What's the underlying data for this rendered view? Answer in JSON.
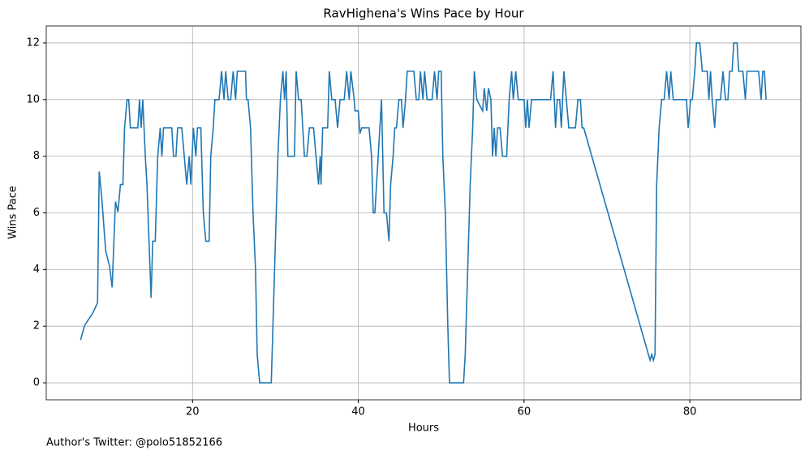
{
  "chart_data": {
    "type": "line",
    "title": "RavHighena's Wins Pace by Hour",
    "xlabel": "Hours",
    "ylabel": "Wins Pace",
    "footnote": "Author's Twitter: @polo51852166",
    "x": [
      6.49,
      6.98,
      7.96,
      8.54,
      8.74,
      9.03,
      9.52,
      10.0,
      10.3,
      10.7,
      11.0,
      11.3,
      11.6,
      11.8,
      12.1,
      12.3,
      12.5,
      13.4,
      13.6,
      13.8,
      14.0,
      14.3,
      14.5,
      15.0,
      15.2,
      15.5,
      15.8,
      16.1,
      16.3,
      16.5,
      17.5,
      17.7,
      18.0,
      18.2,
      18.7,
      19.0,
      19.3,
      19.6,
      19.8,
      20.1,
      20.4,
      20.6,
      21.0,
      21.3,
      21.6,
      22.0,
      22.2,
      22.5,
      22.7,
      23.2,
      23.5,
      23.8,
      24.0,
      24.3,
      24.6,
      24.9,
      25.2,
      25.4,
      26.4,
      26.5,
      26.7,
      27.0,
      27.3,
      27.6,
      27.8,
      28.1,
      29.5,
      29.7,
      30.0,
      30.3,
      30.6,
      30.9,
      31.1,
      31.3,
      31.5,
      32.3,
      32.5,
      32.8,
      33.1,
      33.5,
      33.8,
      34.1,
      34.6,
      34.9,
      35.2,
      35.4,
      35.5,
      35.7,
      36.3,
      36.5,
      36.8,
      37.2,
      37.5,
      37.8,
      38.3,
      38.6,
      38.9,
      39.1,
      39.5,
      39.6,
      40.0,
      40.2,
      40.4,
      41.3,
      41.6,
      41.8,
      42.0,
      42.4,
      42.8,
      43.1,
      43.4,
      43.7,
      43.9,
      44.2,
      44.4,
      44.6,
      44.9,
      45.2,
      45.4,
      45.7,
      45.9,
      46.7,
      47.0,
      47.3,
      47.5,
      47.8,
      48.0,
      48.3,
      48.9,
      49.2,
      49.5,
      49.7,
      50.0,
      50.2,
      50.5,
      50.8,
      51.0,
      52.7,
      52.9,
      53.2,
      53.5,
      53.8,
      54.0,
      54.3,
      55.0,
      55.2,
      55.5,
      55.7,
      56.0,
      56.2,
      56.4,
      56.6,
      56.8,
      57.1,
      57.4,
      57.9,
      58.2,
      58.5,
      58.7,
      59.0,
      59.3,
      60.0,
      60.2,
      60.4,
      60.6,
      60.9,
      63.2,
      63.5,
      63.8,
      64.0,
      64.3,
      64.5,
      64.8,
      65.1,
      65.4,
      66.2,
      66.5,
      66.8,
      67.0,
      67.2,
      75.2,
      75.4,
      75.6,
      75.8,
      76.0,
      76.3,
      76.6,
      76.9,
      77.2,
      77.5,
      77.7,
      78.0,
      79.6,
      79.8,
      80.1,
      80.3,
      80.6,
      80.8,
      81.2,
      81.5,
      82.1,
      82.3,
      82.5,
      82.7,
      83.0,
      83.2,
      83.7,
      84.0,
      84.3,
      84.6,
      84.8,
      85.1,
      85.3,
      85.7,
      85.9,
      86.4,
      86.7,
      86.9,
      88.3,
      88.6,
      88.8,
      89.0,
      89.2
    ],
    "series": [
      {
        "name": "Wins Pace",
        "color": "#1f77b4",
        "values": [
          1.51,
          2.03,
          2.46,
          2.83,
          7.46,
          6.6,
          4.66,
          4.09,
          3.37,
          6.4,
          6.03,
          7,
          7,
          9,
          10,
          10,
          9,
          9,
          10,
          9,
          10,
          8,
          7,
          3,
          5,
          5,
          8,
          9,
          8,
          9,
          9,
          8,
          8,
          9,
          9,
          8,
          7,
          8,
          7,
          9,
          8,
          9,
          9,
          6,
          5,
          5,
          8,
          9,
          10,
          10,
          11,
          10,
          11,
          10,
          10,
          11,
          10,
          11,
          11,
          10,
          10,
          9,
          6,
          4,
          1,
          0,
          0,
          2,
          5,
          8,
          10,
          11,
          10,
          11,
          8,
          8,
          11,
          10,
          10,
          8,
          8,
          9,
          9,
          8,
          7,
          8,
          7,
          9,
          9,
          11,
          10,
          10,
          9,
          10,
          10,
          11,
          10,
          11,
          10,
          9.6,
          9.6,
          8.8,
          9,
          9,
          8,
          6,
          6,
          8,
          10,
          6,
          6,
          5,
          7,
          8,
          9,
          9,
          10,
          10,
          9,
          10,
          11,
          11,
          10,
          10,
          11,
          10,
          11,
          10,
          10,
          11,
          10,
          11,
          11,
          8,
          6,
          2,
          0,
          0,
          1,
          4,
          7,
          9,
          11,
          10,
          9.6,
          10.4,
          9.6,
          10.4,
          10,
          8,
          9,
          8,
          9,
          9,
          8,
          8,
          10,
          11,
          10,
          11,
          10,
          10,
          9,
          10,
          9,
          10,
          10,
          11,
          9,
          10,
          10,
          9,
          11,
          10,
          9,
          9,
          10,
          10,
          9,
          9,
          0.8,
          1,
          0.8,
          1,
          7,
          9,
          10,
          10,
          11,
          10,
          11,
          10,
          10,
          9,
          10,
          10,
          11,
          12,
          12,
          11,
          11,
          10,
          11,
          10,
          9,
          10,
          10,
          11,
          10,
          10,
          11,
          11,
          12,
          12,
          11,
          11,
          10,
          11,
          11,
          10,
          11,
          11,
          10
        ]
      }
    ],
    "xlim": [
      2.35,
      93.4
    ],
    "ylim": [
      -0.6,
      12.6
    ],
    "xticks": [
      20,
      40,
      60,
      80
    ],
    "yticks": [
      0,
      2,
      4,
      6,
      8,
      10,
      12
    ],
    "grid": true
  }
}
